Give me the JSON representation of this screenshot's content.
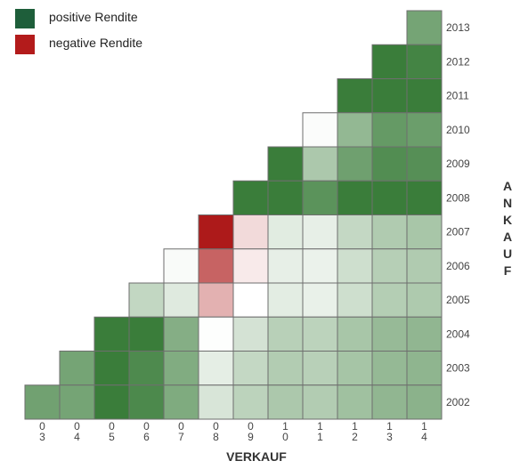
{
  "legend": {
    "positive": {
      "label": "positive Rendite",
      "color": "#1e5e3a"
    },
    "negative": {
      "label": "negative Rendite",
      "color": "#b31b1b"
    }
  },
  "chart_data": {
    "type": "heatmap",
    "xlabel": "VERKAUF",
    "ylabel": "ANKAUF",
    "x_tick_labels": [
      "03",
      "04",
      "05",
      "06",
      "07",
      "08",
      "09",
      "10",
      "11",
      "12",
      "13",
      "14"
    ],
    "y_tick_labels": [
      "2013",
      "2012",
      "2011",
      "2010",
      "2009",
      "2008",
      "2007",
      "2006",
      "2005",
      "2004",
      "2003",
      "2002"
    ],
    "colors": {
      "positive": "#3a7d3a",
      "negative": "#ad1a1a"
    },
    "rows": [
      {
        "label": "2013",
        "values": [
          null,
          null,
          null,
          null,
          null,
          null,
          null,
          null,
          null,
          null,
          null,
          0.7
        ]
      },
      {
        "label": "2012",
        "values": [
          null,
          null,
          null,
          null,
          null,
          null,
          null,
          null,
          null,
          null,
          1.0,
          0.95
        ]
      },
      {
        "label": "2011",
        "values": [
          null,
          null,
          null,
          null,
          null,
          null,
          null,
          null,
          null,
          1.0,
          1.0,
          1.0
        ]
      },
      {
        "label": "2010",
        "values": [
          null,
          null,
          null,
          null,
          null,
          null,
          null,
          null,
          0.02,
          0.55,
          0.78,
          0.75
        ]
      },
      {
        "label": "2009",
        "values": [
          null,
          null,
          null,
          null,
          null,
          null,
          null,
          1.0,
          0.42,
          0.73,
          0.88,
          0.86
        ]
      },
      {
        "label": "2008",
        "values": [
          null,
          null,
          null,
          null,
          null,
          null,
          1.0,
          1.0,
          0.83,
          1.0,
          1.0,
          1.0
        ]
      },
      {
        "label": "2007",
        "values": [
          null,
          null,
          null,
          null,
          null,
          -1.0,
          -0.16,
          0.15,
          0.12,
          0.3,
          0.4,
          0.44
        ]
      },
      {
        "label": "2006",
        "values": [
          null,
          null,
          null,
          null,
          0.03,
          -0.68,
          -0.09,
          0.12,
          0.1,
          0.25,
          0.37,
          0.4
        ]
      },
      {
        "label": "2005",
        "values": [
          null,
          null,
          null,
          0.31,
          0.16,
          -0.34,
          0.0,
          0.14,
          0.11,
          0.25,
          0.38,
          0.41
        ]
      },
      {
        "label": "2004",
        "values": [
          null,
          null,
          1.0,
          1.0,
          0.62,
          0.01,
          0.22,
          0.36,
          0.34,
          0.44,
          0.53,
          0.56
        ]
      },
      {
        "label": "2003",
        "values": [
          null,
          0.7,
          1.0,
          0.9,
          0.64,
          0.13,
          0.3,
          0.39,
          0.36,
          0.45,
          0.54,
          0.57
        ]
      },
      {
        "label": "2002",
        "values": [
          0.72,
          0.7,
          1.0,
          0.91,
          0.65,
          0.2,
          0.34,
          0.42,
          0.39,
          0.48,
          0.56,
          0.59
        ]
      }
    ]
  }
}
